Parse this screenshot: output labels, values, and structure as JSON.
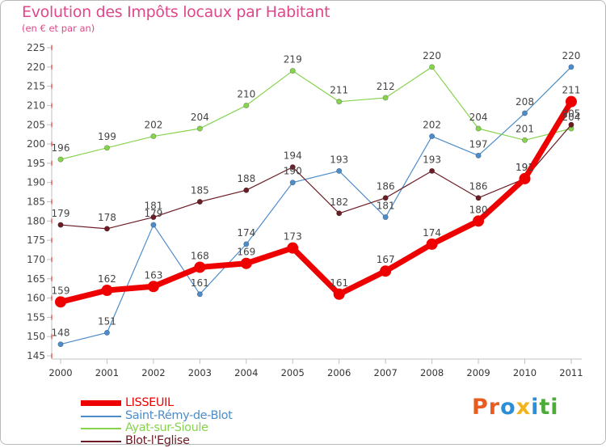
{
  "title": "Evolution des Impôts locaux par Habitant",
  "subtitle": "(en € et par an)",
  "colors": {
    "title": "#e0478a",
    "axis": "#c0c0c0",
    "grid_dash": "#e01010"
  },
  "chart_data": {
    "type": "line",
    "title": "Evolution des Impôts locaux par Habitant",
    "subtitle": "(en € et par an)",
    "xlabel": "",
    "ylabel": "",
    "x": [
      "2000",
      "2001",
      "2002",
      "2003",
      "2004",
      "2005",
      "2006",
      "2007",
      "2008",
      "2009",
      "2010",
      "2011"
    ],
    "ylim": [
      145,
      225
    ],
    "yticks": [
      145,
      150,
      155,
      160,
      165,
      170,
      175,
      180,
      185,
      190,
      195,
      200,
      205,
      210,
      215,
      220,
      225
    ],
    "legend_position": "bottom-left",
    "series": [
      {
        "name": "LISSEUIL",
        "color": "#ee0000",
        "values": [
          159,
          162,
          163,
          168,
          169,
          173,
          161,
          167,
          174,
          180,
          191,
          211
        ],
        "labels": [
          "159",
          "162",
          "163",
          "168",
          "169",
          "173",
          "161",
          "167",
          "174",
          "180",
          "191",
          "211"
        ]
      },
      {
        "name": "Saint-Rémy-de-Blot",
        "color": "#4d8cc9",
        "values": [
          148,
          151,
          179,
          161,
          174,
          190,
          193,
          181,
          202,
          197,
          208,
          220
        ],
        "labels": [
          "148",
          "151",
          "179",
          "161",
          "174",
          "190",
          "193",
          "181",
          "202",
          "197",
          "208",
          "220"
        ]
      },
      {
        "name": "Ayat-sur-Sioule",
        "color": "#86d34e",
        "values": [
          196,
          199,
          202,
          204,
          210,
          219,
          211,
          212,
          220,
          204,
          201,
          204
        ],
        "labels": [
          "196",
          "199",
          "202",
          "204",
          "210",
          "219",
          "211",
          "212",
          "220",
          "204",
          "201",
          "204"
        ]
      },
      {
        "name": "Blot-l'Eglise",
        "color": "#6b1c24",
        "values": [
          179,
          178,
          181,
          185,
          188,
          194,
          182,
          186,
          193,
          186,
          191,
          205
        ],
        "labels": [
          "179",
          "178",
          "181",
          "185",
          "188",
          "194",
          "182",
          "186",
          "193",
          "186",
          "191",
          "205"
        ]
      }
    ]
  },
  "logo": {
    "letters": [
      "P",
      "r",
      "o",
      "x",
      "i",
      "t",
      "i"
    ],
    "colors": [
      "#e85d1f",
      "#e85d1f",
      "#2a8fd8",
      "#f2b41c",
      "#2a8fd8",
      "#4dab3a",
      "#4dab3a"
    ]
  }
}
